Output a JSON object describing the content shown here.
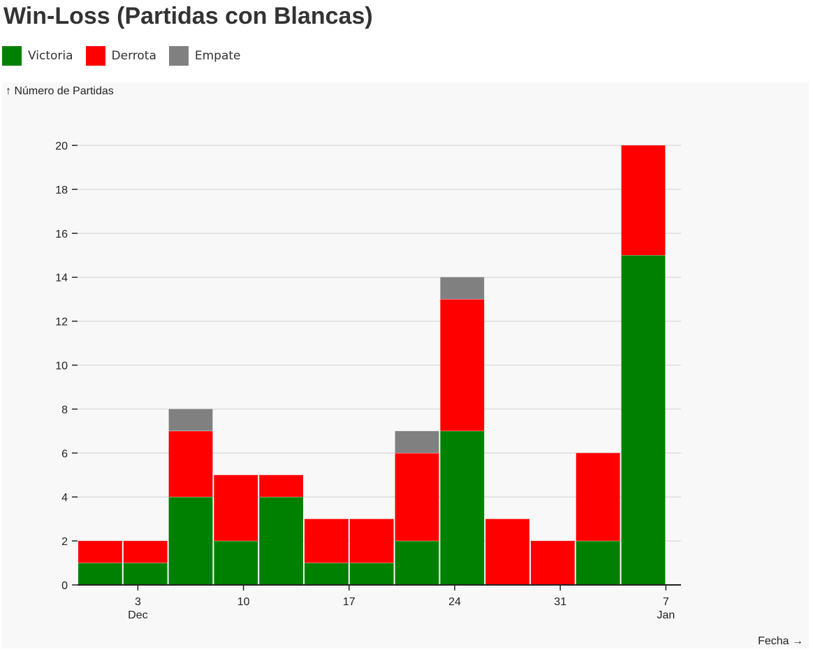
{
  "title": "Win-Loss (Partidas con Blancas)",
  "legend": [
    {
      "label": "Victoria",
      "color": "#008000"
    },
    {
      "label": "Derrota",
      "color": "#ff0000"
    },
    {
      "label": "Empate",
      "color": "#808080"
    }
  ],
  "chart_data": {
    "type": "bar",
    "stacked": true,
    "title": "Win-Loss (Partidas con Blancas)",
    "ylabel": "↑ Número de Partidas",
    "xlabel": "Fecha →",
    "ylim": [
      0,
      20
    ],
    "y_ticks": [
      0,
      2,
      4,
      6,
      8,
      10,
      12,
      14,
      16,
      18,
      20
    ],
    "x_ticks": [
      {
        "label": "3",
        "sub": "Dec",
        "day": 3
      },
      {
        "label": "10",
        "sub": "",
        "day": 10
      },
      {
        "label": "17",
        "sub": "",
        "day": 17
      },
      {
        "label": "24",
        "sub": "",
        "day": 24
      },
      {
        "label": "31",
        "sub": "",
        "day": 31
      },
      {
        "label": "7",
        "sub": "Jan",
        "day": 38
      }
    ],
    "x_domain_days": [
      -1,
      39
    ],
    "grid": true,
    "bins": [
      {
        "start": -1,
        "end": 2
      },
      {
        "start": 2,
        "end": 5
      },
      {
        "start": 5,
        "end": 8
      },
      {
        "start": 8,
        "end": 11
      },
      {
        "start": 11,
        "end": 14
      },
      {
        "start": 14,
        "end": 17
      },
      {
        "start": 17,
        "end": 20
      },
      {
        "start": 20,
        "end": 23
      },
      {
        "start": 23,
        "end": 26
      },
      {
        "start": 26,
        "end": 29
      },
      {
        "start": 29,
        "end": 32
      },
      {
        "start": 32,
        "end": 35
      },
      {
        "start": 35,
        "end": 38
      }
    ],
    "series": [
      {
        "name": "Victoria",
        "color": "#008000",
        "values": [
          1,
          1,
          4,
          2,
          4,
          1,
          1,
          2,
          7,
          0,
          0,
          2,
          15
        ]
      },
      {
        "name": "Derrota",
        "color": "#ff0000",
        "values": [
          1,
          1,
          3,
          3,
          1,
          2,
          2,
          4,
          6,
          3,
          2,
          4,
          5
        ]
      },
      {
        "name": "Empate",
        "color": "#808080",
        "values": [
          0,
          0,
          1,
          0,
          0,
          0,
          0,
          1,
          1,
          0,
          0,
          0,
          0
        ]
      }
    ]
  }
}
